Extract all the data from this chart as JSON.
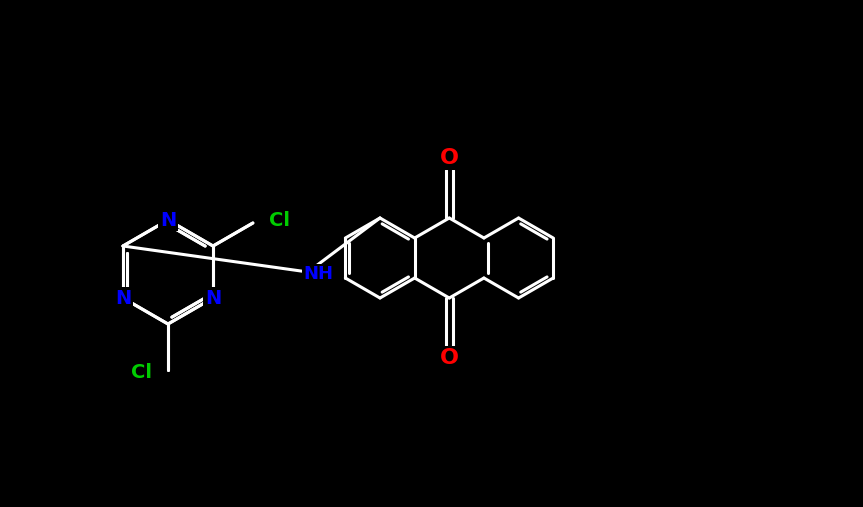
{
  "background_color": "#000000",
  "bond_color": "#ffffff",
  "bond_width": 2.2,
  "atom_colors": {
    "N": "#0000ff",
    "Cl": "#00cc00",
    "O": "#ff0000",
    "C": "#ffffff",
    "H": "#ffffff"
  },
  "figsize": [
    8.63,
    5.07
  ],
  "dpi": 100
}
